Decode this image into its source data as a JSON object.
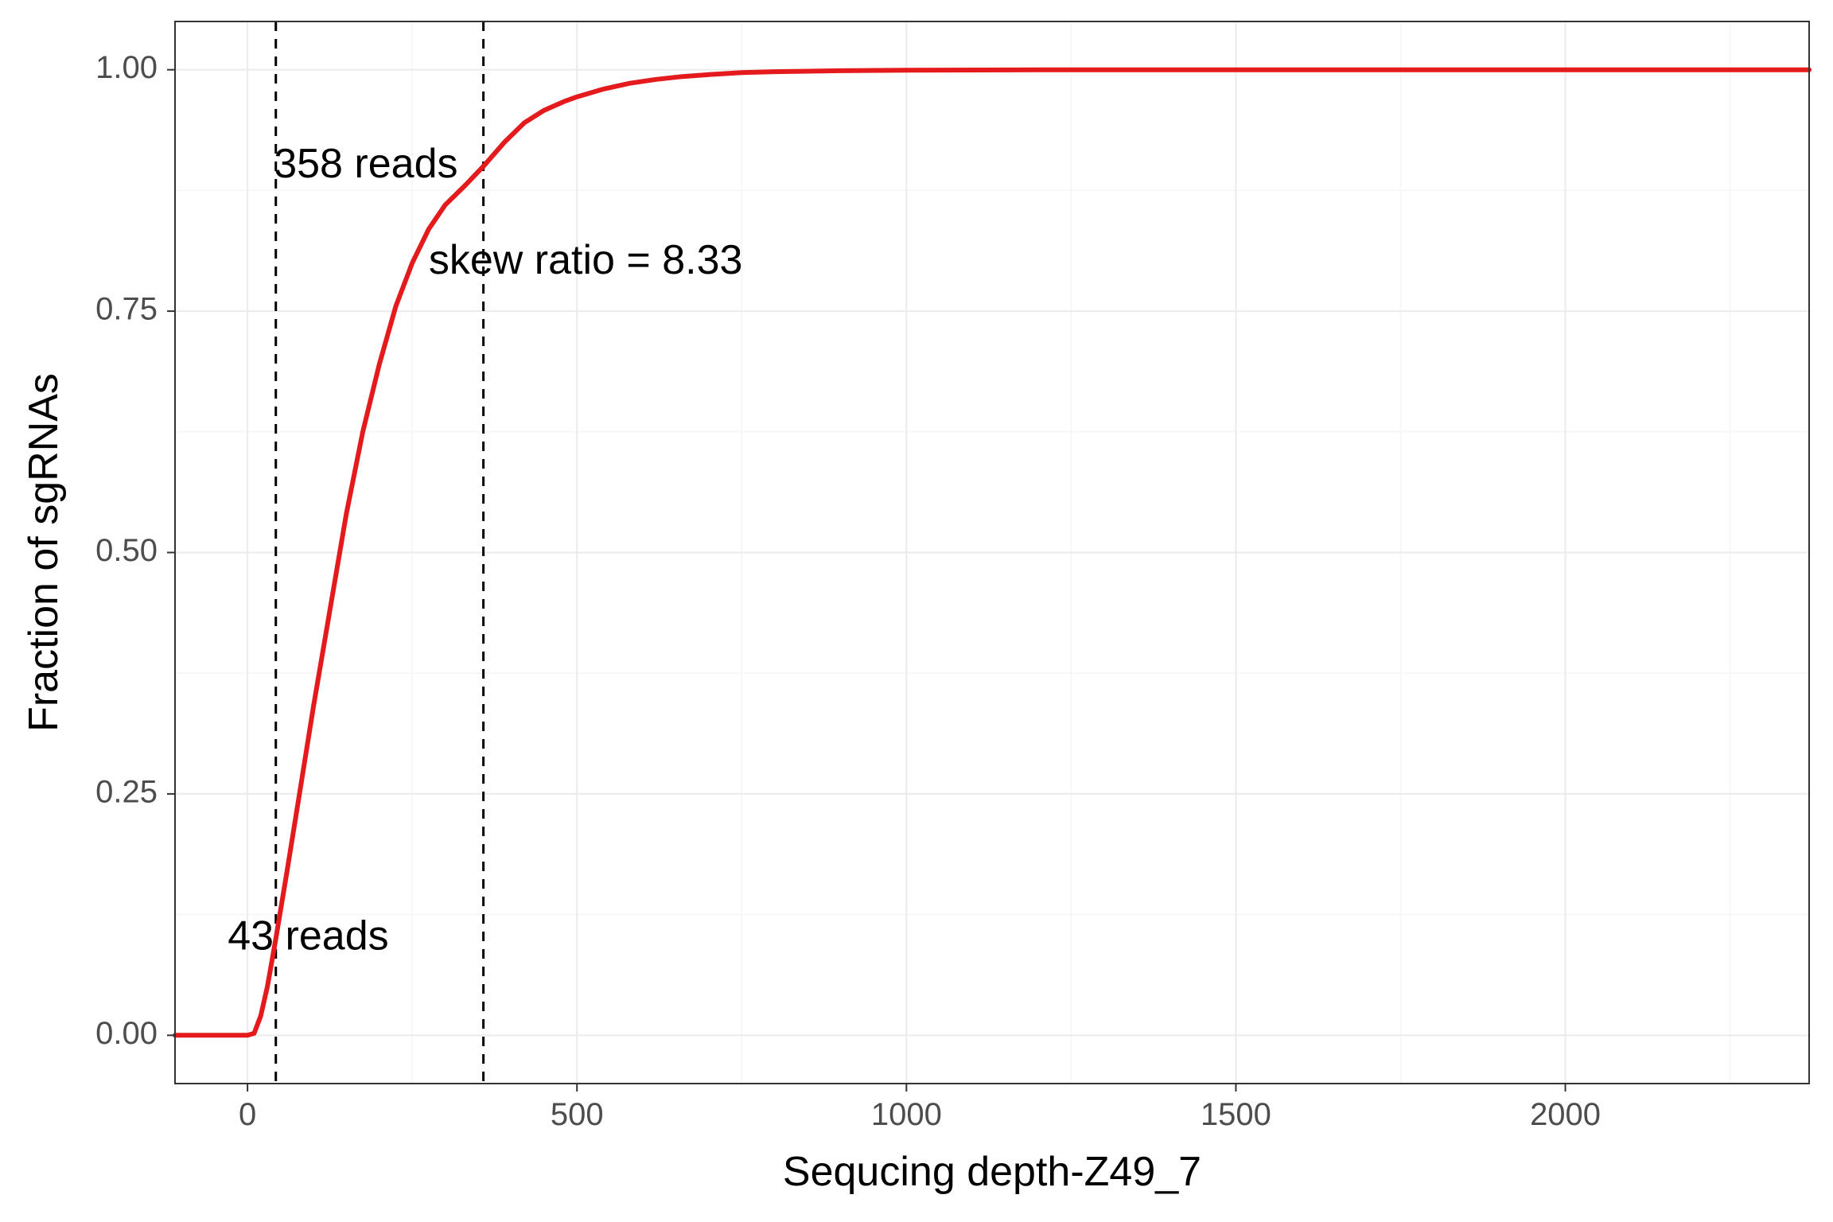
{
  "chart_data": {
    "type": "line",
    "title": "",
    "xlabel": "Sequcing depth-Z49_7",
    "ylabel": "Fraction of sgRNAs",
    "xlim": [
      -110,
      2370
    ],
    "ylim": [
      -0.05,
      1.05
    ],
    "x_ticks": [
      0,
      500,
      1000,
      1500,
      2000
    ],
    "x_tick_labels": [
      "0",
      "500",
      "1000",
      "1500",
      "2000"
    ],
    "y_ticks": [
      0,
      0.25,
      0.5,
      0.75,
      1.0
    ],
    "y_tick_labels": [
      "0.00",
      "0.25",
      "0.50",
      "0.75",
      "1.00"
    ],
    "grid": true,
    "legend": "none",
    "colors": {
      "line": "#e41a1c",
      "vlines": "#000000",
      "grid_major": "#ebebeb",
      "grid_minor": "#f5f5f5",
      "panel_border": "#333333"
    },
    "series": [
      {
        "x": [
          -110,
          0,
          10,
          20,
          30,
          43,
          60,
          80,
          100,
          125,
          150,
          175,
          200,
          225,
          250,
          275,
          300,
          330,
          358,
          390,
          420,
          450,
          480,
          500,
          540,
          580,
          620,
          660,
          700,
          750,
          800,
          900,
          1000,
          1200,
          1500,
          1700,
          2000,
          2370
        ],
        "y": [
          0,
          0,
          0.002,
          0.02,
          0.05,
          0.1,
          0.17,
          0.255,
          0.34,
          0.44,
          0.54,
          0.625,
          0.695,
          0.755,
          0.8,
          0.835,
          0.86,
          0.88,
          0.9,
          0.925,
          0.945,
          0.958,
          0.967,
          0.972,
          0.98,
          0.986,
          0.99,
          0.993,
          0.995,
          0.997,
          0.998,
          0.999,
          0.9995,
          1.0,
          1.0,
          1.0,
          1.0,
          1.0
        ]
      }
    ],
    "vlines": [
      43,
      358
    ],
    "annotations": [
      {
        "text": "358 reads",
        "x": 40,
        "y": 0.9
      },
      {
        "text": "skew ratio = 8.33",
        "x": 275,
        "y": 0.8
      },
      {
        "text": "43 reads",
        "x": -30,
        "y": 0.1
      }
    ]
  }
}
